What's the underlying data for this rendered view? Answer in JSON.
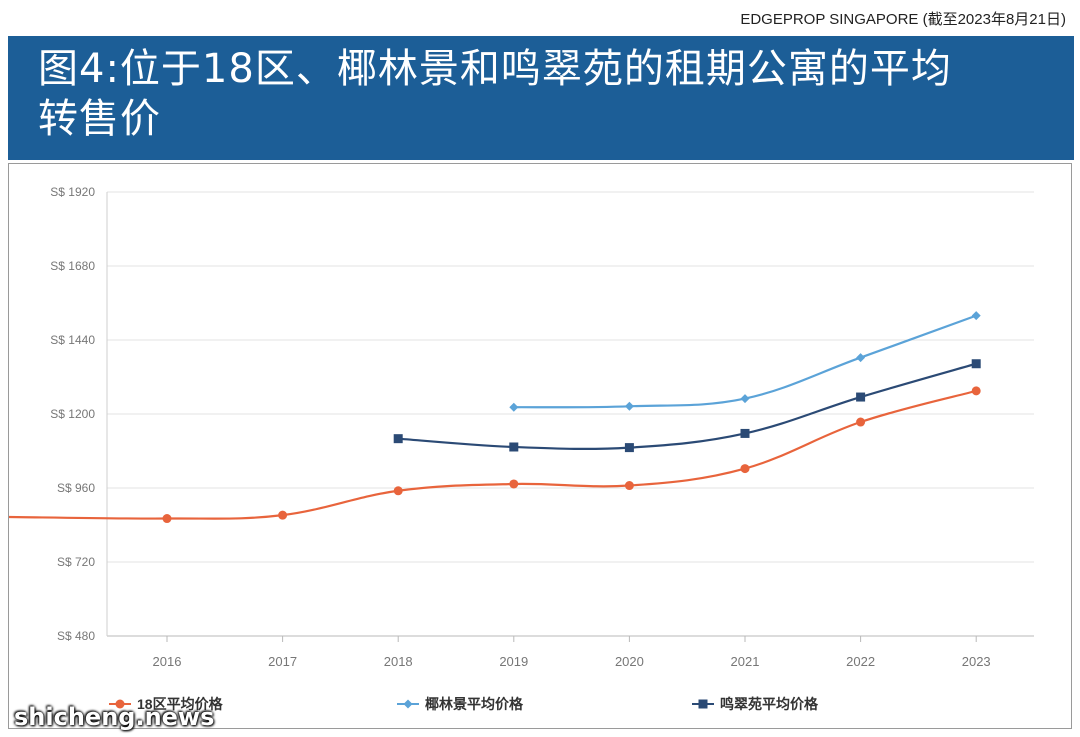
{
  "source": "EDGEPROP SINGAPORE (截至2023年8月21日)",
  "title_line1": "图4:位于18区、椰林景和鸣翠苑的租期公寓的平均",
  "title_line2": "转售价",
  "watermark": "shicheng.news",
  "colors": {
    "banner": "#1c5e97",
    "series_18": "#e8643c",
    "series_coco": "#5ba3d8",
    "series_ming": "#2b4a75"
  },
  "chart_data": {
    "type": "line",
    "x": [
      "2016",
      "2017",
      "2018",
      "2019",
      "2020",
      "2021",
      "2022",
      "2023"
    ],
    "y_ticks": [
      "S$ 480",
      "S$ 720",
      "S$ 960",
      "S$ 1200",
      "S$ 1440",
      "S$ 1680",
      "S$ 1920"
    ],
    "y_tick_values": [
      480,
      720,
      960,
      1200,
      1440,
      1680,
      1920
    ],
    "ylim": [
      480,
      1920
    ],
    "grid": true,
    "legend_position": "bottom",
    "series": [
      {
        "name": "18区平均价格",
        "marker": "circle",
        "color": "#e8643c",
        "left_edge_value": 866,
        "values": [
          861,
          872,
          951,
          973,
          968,
          1023,
          1174,
          1275
        ]
      },
      {
        "name": "椰林景平均价格",
        "marker": "diamond",
        "color": "#5ba3d8",
        "values": [
          null,
          null,
          null,
          1222,
          1225,
          1250,
          1383,
          1519
        ]
      },
      {
        "name": "鸣翠苑平均价格",
        "marker": "square",
        "color": "#2b4a75",
        "values": [
          null,
          null,
          1120,
          1093,
          1091,
          1137,
          1255,
          1363
        ]
      }
    ]
  }
}
